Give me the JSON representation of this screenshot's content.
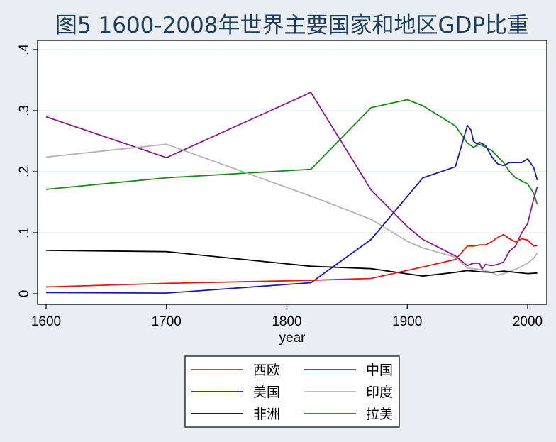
{
  "chart_data": {
    "type": "line",
    "title": "图5 1600-2008年世界主要国家和地区GDP比重",
    "xlabel": "year",
    "ylabel": "",
    "xlim": [
      1593,
      2016
    ],
    "ylim": [
      0,
      0.4
    ],
    "x_ticks": [
      1600,
      1700,
      1800,
      1900,
      2000
    ],
    "x_tick_labels": [
      "1600",
      "1700",
      "1800",
      "1900",
      "2000"
    ],
    "y_ticks": [
      0,
      0.1,
      0.2,
      0.3,
      0.4
    ],
    "y_tick_labels": [
      "0",
      ".1",
      ".2",
      ".3",
      ".4"
    ],
    "grid": "horizontal",
    "legend_placement": "bottom",
    "series": [
      {
        "name": "西欧",
        "color": "#1a8a1a",
        "x": [
          1600,
          1700,
          1820,
          1870,
          1900,
          1913,
          1940,
          1950,
          1955,
          1960,
          1965,
          1970,
          1975,
          1980,
          1985,
          1990,
          1995,
          2000,
          2005,
          2008
        ],
        "y": [
          0.171,
          0.19,
          0.204,
          0.305,
          0.318,
          0.308,
          0.275,
          0.247,
          0.24,
          0.245,
          0.24,
          0.235,
          0.225,
          0.215,
          0.2,
          0.19,
          0.185,
          0.18,
          0.165,
          0.146
        ]
      },
      {
        "name": "中国",
        "color": "#8b1a8b",
        "x": [
          1600,
          1700,
          1820,
          1870,
          1900,
          1913,
          1940,
          1950,
          1955,
          1960,
          1962,
          1965,
          1970,
          1975,
          1980,
          1985,
          1990,
          1995,
          2000,
          2005,
          2008
        ],
        "y": [
          0.29,
          0.223,
          0.33,
          0.17,
          0.11,
          0.089,
          0.062,
          0.046,
          0.05,
          0.05,
          0.04,
          0.048,
          0.046,
          0.048,
          0.052,
          0.07,
          0.078,
          0.1,
          0.115,
          0.155,
          0.175
        ]
      },
      {
        "name": "美国",
        "color": "#1a1ab4",
        "x": [
          1600,
          1700,
          1820,
          1870,
          1913,
          1940,
          1950,
          1953,
          1955,
          1958,
          1960,
          1965,
          1970,
          1975,
          1980,
          1985,
          1990,
          1995,
          2000,
          2005,
          2008
        ],
        "y": [
          0.002,
          0.001,
          0.018,
          0.089,
          0.19,
          0.208,
          0.276,
          0.268,
          0.25,
          0.245,
          0.248,
          0.243,
          0.225,
          0.213,
          0.21,
          0.215,
          0.215,
          0.215,
          0.221,
          0.207,
          0.186
        ]
      },
      {
        "name": "印度",
        "color": "#b4b4b4",
        "x": [
          1600,
          1700,
          1820,
          1870,
          1900,
          1913,
          1940,
          1950,
          1960,
          1970,
          1975,
          1980,
          1985,
          1990,
          1995,
          2000,
          2005,
          2008
        ],
        "y": [
          0.224,
          0.245,
          0.16,
          0.122,
          0.086,
          0.075,
          0.06,
          0.042,
          0.04,
          0.035,
          0.03,
          0.033,
          0.036,
          0.04,
          0.045,
          0.05,
          0.058,
          0.067
        ]
      },
      {
        "name": "非洲",
        "color": "#000000",
        "x": [
          1600,
          1700,
          1820,
          1870,
          1913,
          1940,
          1950,
          1960,
          1970,
          1980,
          1990,
          2000,
          2008
        ],
        "y": [
          0.071,
          0.069,
          0.045,
          0.041,
          0.029,
          0.035,
          0.038,
          0.036,
          0.035,
          0.037,
          0.035,
          0.033,
          0.034
        ]
      },
      {
        "name": "拉美",
        "color": "#e01a1a",
        "x": [
          1600,
          1700,
          1820,
          1870,
          1913,
          1940,
          1950,
          1955,
          1960,
          1965,
          1970,
          1975,
          1980,
          1985,
          1990,
          1995,
          2000,
          2005,
          2008
        ],
        "y": [
          0.011,
          0.017,
          0.022,
          0.025,
          0.044,
          0.056,
          0.078,
          0.078,
          0.08,
          0.08,
          0.085,
          0.092,
          0.097,
          0.09,
          0.085,
          0.09,
          0.088,
          0.078,
          0.079
        ]
      }
    ],
    "legend_order": [
      "西欧",
      "中国",
      "美国",
      "印度",
      "非洲",
      "拉美"
    ]
  },
  "style": {
    "background": "#e9eef3",
    "plot_background": "#ffffff",
    "grid_color": "#e3ecf2",
    "title_color": "#1e3c5a"
  }
}
